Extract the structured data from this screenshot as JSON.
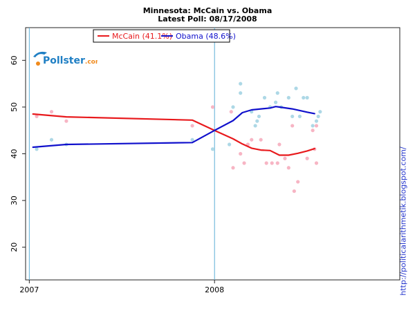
{
  "chart_data": {
    "type": "line",
    "title": "Minnesota: McCain vs. Obama",
    "subtitle": "Latest Poll: 08/17/2008",
    "xlabel": "",
    "ylabel": "",
    "xlim": [
      2006.98,
      2009.0
    ],
    "ylim": [
      13,
      67
    ],
    "yticks": [
      20,
      30,
      40,
      50,
      60
    ],
    "xticks": [
      {
        "value": 2007.0,
        "label": "2007"
      },
      {
        "value": 2008.0,
        "label": "2008"
      }
    ],
    "grid": false,
    "legend_position": "top-left",
    "series": [
      {
        "name": "McCain",
        "legend_label": "McCain (41.1%)",
        "color": "#e8191c",
        "point_color": "#f7b5c4",
        "trend": [
          [
            2007.02,
            48.5
          ],
          [
            2007.2,
            47.9
          ],
          [
            2007.88,
            47.2
          ],
          [
            2008.0,
            45.0
          ],
          [
            2008.1,
            43.2
          ],
          [
            2008.15,
            42.1
          ],
          [
            2008.2,
            41.2
          ],
          [
            2008.25,
            40.8
          ],
          [
            2008.3,
            40.7
          ],
          [
            2008.35,
            39.7
          ],
          [
            2008.4,
            39.7
          ],
          [
            2008.45,
            40.1
          ],
          [
            2008.5,
            40.6
          ],
          [
            2008.54,
            41.1
          ]
        ],
        "polls": [
          [
            2007.04,
            48
          ],
          [
            2007.12,
            49
          ],
          [
            2007.2,
            47
          ],
          [
            2007.88,
            46
          ],
          [
            2007.99,
            50
          ],
          [
            2008.09,
            49
          ],
          [
            2008.1,
            37
          ],
          [
            2008.14,
            40
          ],
          [
            2008.16,
            38
          ],
          [
            2008.18,
            42
          ],
          [
            2008.2,
            43
          ],
          [
            2008.25,
            43
          ],
          [
            2008.28,
            38
          ],
          [
            2008.31,
            38
          ],
          [
            2008.35,
            42
          ],
          [
            2008.34,
            38
          ],
          [
            2008.38,
            39
          ],
          [
            2008.4,
            37
          ],
          [
            2008.42,
            46
          ],
          [
            2008.43,
            32
          ],
          [
            2008.45,
            34
          ],
          [
            2008.5,
            39
          ],
          [
            2008.53,
            45
          ],
          [
            2008.55,
            46
          ],
          [
            2008.54,
            41
          ],
          [
            2008.55,
            38
          ]
        ]
      },
      {
        "name": "Obama",
        "legend_label": "Obama (48.6%)",
        "color": "#1010cc",
        "point_color": "#add8e6",
        "trend": [
          [
            2007.02,
            41.4
          ],
          [
            2007.2,
            42.0
          ],
          [
            2007.88,
            42.4
          ],
          [
            2008.0,
            45.0
          ],
          [
            2008.1,
            47.1
          ],
          [
            2008.15,
            48.8
          ],
          [
            2008.2,
            49.4
          ],
          [
            2008.25,
            49.6
          ],
          [
            2008.3,
            49.8
          ],
          [
            2008.33,
            50.1
          ],
          [
            2008.35,
            50.0
          ],
          [
            2008.42,
            49.6
          ],
          [
            2008.5,
            48.9
          ],
          [
            2008.54,
            48.6
          ]
        ],
        "polls": [
          [
            2007.04,
            41
          ],
          [
            2007.12,
            43
          ],
          [
            2007.2,
            42
          ],
          [
            2007.88,
            43
          ],
          [
            2007.99,
            41
          ],
          [
            2008.08,
            42
          ],
          [
            2008.1,
            50
          ],
          [
            2008.14,
            53
          ],
          [
            2008.14,
            55
          ],
          [
            2008.2,
            49
          ],
          [
            2008.22,
            46
          ],
          [
            2008.23,
            47
          ],
          [
            2008.24,
            48
          ],
          [
            2008.27,
            52
          ],
          [
            2008.3,
            50
          ],
          [
            2008.33,
            51
          ],
          [
            2008.34,
            53
          ],
          [
            2008.36,
            50
          ],
          [
            2008.4,
            52
          ],
          [
            2008.42,
            48
          ],
          [
            2008.44,
            54
          ],
          [
            2008.46,
            48
          ],
          [
            2008.48,
            52
          ],
          [
            2008.5,
            52
          ],
          [
            2008.53,
            46
          ],
          [
            2008.55,
            47
          ],
          [
            2008.56,
            48
          ],
          [
            2008.57,
            49
          ]
        ]
      }
    ],
    "annotations": {
      "watermark": "Pollster.com",
      "side_link": "http://politicalarithmetik.blogspot.com/"
    }
  }
}
